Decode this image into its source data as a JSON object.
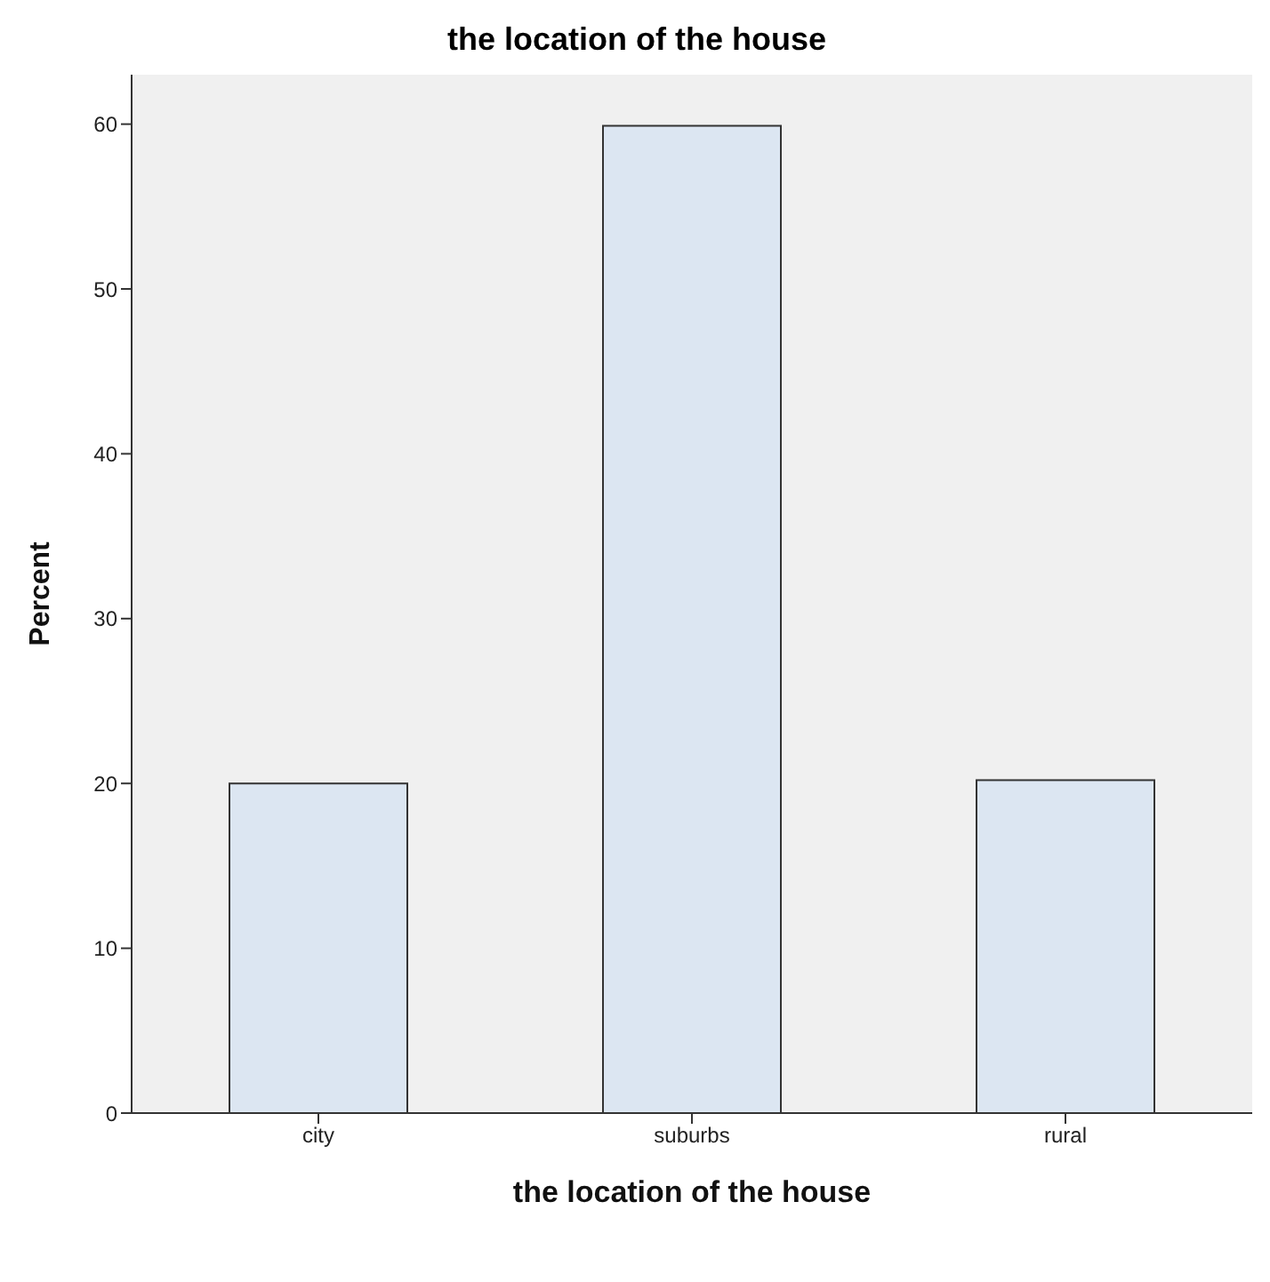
{
  "chart_data": {
    "type": "bar",
    "title": "the location of the house",
    "xlabel": "the location of the house",
    "ylabel": "Percent",
    "categories": [
      "city",
      "suburbs",
      "rural"
    ],
    "values": [
      20.0,
      59.9,
      20.2
    ],
    "color": "#dce6f2",
    "ylim": [
      0,
      63
    ],
    "yticks": [
      0,
      10,
      20,
      30,
      40,
      50,
      60
    ],
    "grid": false,
    "legend": false
  }
}
